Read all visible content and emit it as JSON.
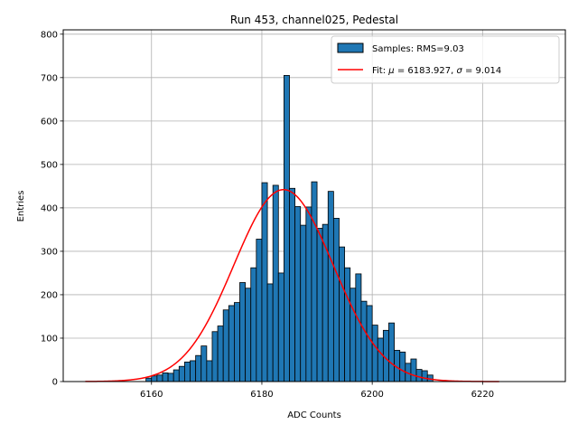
{
  "chart_data": {
    "type": "bar",
    "title": "Run 453, channel025, Pedestal",
    "xlabel": "ADC Counts",
    "ylabel": "Entries",
    "xlim": [
      6144,
      6235
    ],
    "ylim": [
      0,
      810
    ],
    "grid": true,
    "legend_position": "top-right",
    "xticks": [
      6160,
      6180,
      6200,
      6220
    ],
    "yticks": [
      0,
      100,
      200,
      300,
      400,
      500,
      600,
      700,
      800
    ],
    "histogram": {
      "name": "Samples: RMS=9.03",
      "color": "#1f77b4",
      "bin_edges_start": 6159,
      "bin_width": 1,
      "values": [
        8,
        13,
        15,
        20,
        19,
        27,
        35,
        45,
        48,
        60,
        82,
        48,
        115,
        128,
        165,
        175,
        182,
        228,
        215,
        262,
        328,
        458,
        225,
        452,
        250,
        705,
        445,
        403,
        360,
        402,
        460,
        353,
        362,
        438,
        376,
        310,
        262,
        215,
        248,
        185,
        175,
        130,
        100,
        118,
        135,
        72,
        68,
        42,
        52,
        28,
        25,
        15
      ]
    },
    "fit": {
      "name_prefix": "Fit: ",
      "mu_symbol": "μ",
      "mu_text": " = 6183.927, ",
      "sigma_symbol": "σ",
      "sigma_text": " = 9.014",
      "mu": 6183.927,
      "sigma": 9.014,
      "amplitude": 442,
      "x_range": [
        6148,
        6223
      ],
      "color": "#ff0000"
    }
  }
}
